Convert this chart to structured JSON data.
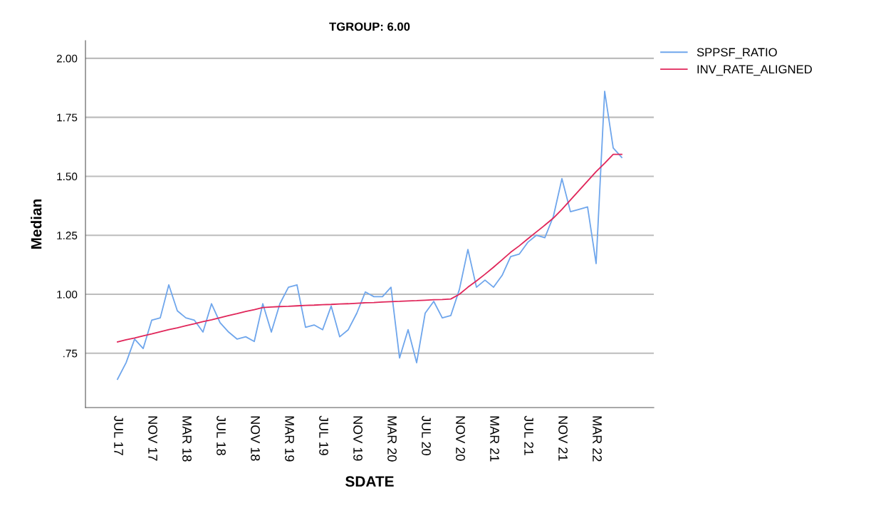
{
  "chart_data": {
    "type": "line",
    "title": "TGROUP: 6.00",
    "xlabel": "SDATE",
    "ylabel": "Median",
    "categories": [
      "JUL 17",
      null,
      null,
      null,
      "NOV 17",
      null,
      null,
      null,
      "MAR 18",
      null,
      null,
      null,
      "JUL 18",
      null,
      null,
      null,
      "NOV 18",
      null,
      null,
      null,
      "MAR 19",
      null,
      null,
      null,
      "JUL 19",
      null,
      null,
      null,
      "NOV 19",
      null,
      null,
      null,
      "MAR 20",
      null,
      null,
      null,
      "JUL 20",
      null,
      null,
      null,
      "NOV 20",
      null,
      null,
      null,
      "MAR 21",
      null,
      null,
      null,
      "JUL 21",
      null,
      null,
      null,
      "NOV 21",
      null,
      null,
      null,
      "MAR 22",
      null,
      null,
      null
    ],
    "series": [
      {
        "name": "SPPSF_RATIO",
        "color": "#6fa6ec",
        "values": [
          0.64,
          0.71,
          0.81,
          0.77,
          0.89,
          0.9,
          1.04,
          0.93,
          0.9,
          0.89,
          0.84,
          0.96,
          0.88,
          0.84,
          0.81,
          0.82,
          0.8,
          0.96,
          0.84,
          0.96,
          1.03,
          1.04,
          0.86,
          0.87,
          0.85,
          0.95,
          0.82,
          0.85,
          0.92,
          1.01,
          0.99,
          0.99,
          1.03,
          0.73,
          0.85,
          0.71,
          0.92,
          0.97,
          0.9,
          0.91,
          1.02,
          1.19,
          1.03,
          1.06,
          1.03,
          1.08,
          1.16,
          1.17,
          1.22,
          1.25,
          1.24,
          1.33,
          1.49,
          1.35,
          1.36,
          1.37,
          1.13,
          1.86,
          1.62,
          1.58
        ]
      },
      {
        "name": "INV_RATE_ALIGNED",
        "color": "#e0265a",
        "values": [
          0.798,
          0.807,
          0.815,
          0.824,
          0.832,
          0.841,
          0.85,
          0.858,
          0.867,
          0.875,
          0.884,
          0.892,
          0.901,
          0.91,
          0.918,
          0.927,
          0.935,
          0.944,
          0.946,
          0.948,
          0.949,
          0.951,
          0.953,
          0.954,
          0.956,
          0.957,
          0.959,
          0.96,
          0.962,
          0.964,
          0.965,
          0.967,
          0.969,
          0.97,
          0.972,
          0.973,
          0.975,
          0.977,
          0.978,
          0.98,
          1.0,
          1.03,
          1.057,
          1.085,
          1.115,
          1.146,
          1.178,
          1.205,
          1.235,
          1.264,
          1.293,
          1.323,
          1.36,
          1.4,
          1.44,
          1.48,
          1.52,
          1.555,
          1.593,
          1.593
        ]
      }
    ],
    "ylim": [
      0.52,
      2.075
    ],
    "yticks": [
      {
        "value": 0.75,
        "label": ".75"
      },
      {
        "value": 1.0,
        "label": "1.00"
      },
      {
        "value": 1.25,
        "label": "1.25"
      },
      {
        "value": 1.5,
        "label": "1.50"
      },
      {
        "value": 1.75,
        "label": "1.75"
      },
      {
        "value": 2.0,
        "label": "2.00"
      }
    ],
    "grid": "y",
    "legend": "top right",
    "marker": "none",
    "line_style": "solid"
  }
}
